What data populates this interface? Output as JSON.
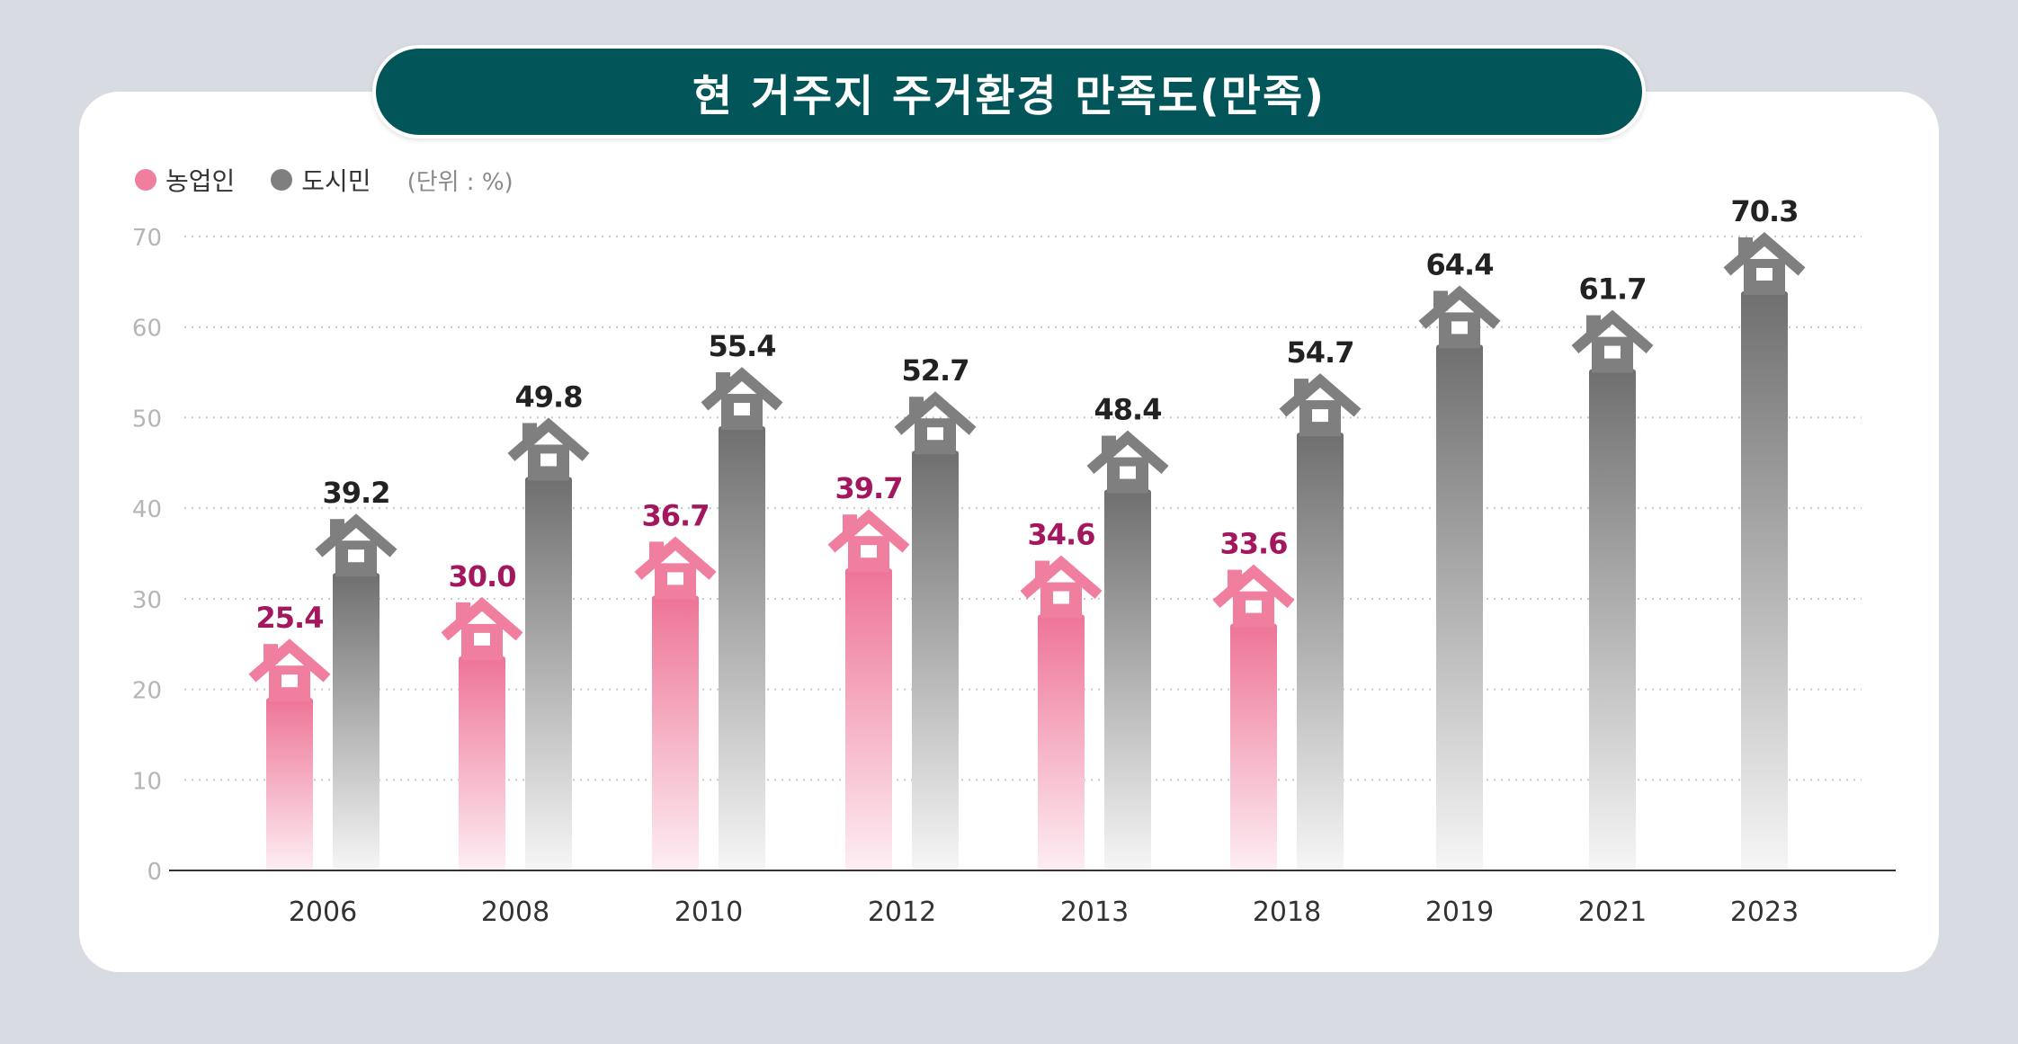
{
  "colors": {
    "farmer": "#f07f9f",
    "farmer_label": "#a3175f",
    "city": "#7f7f7f",
    "city_label": "#222222",
    "banner": "#025558"
  },
  "legend": {
    "farmer": "농업인",
    "city": "도시민",
    "unit": "(단위 : %)"
  },
  "chart_data": {
    "type": "bar",
    "title": "현 거주지 주거환경 만족도(만족)",
    "categories": [
      "2006",
      "2008",
      "2010",
      "2012",
      "2013",
      "2018",
      "2019",
      "2021",
      "2023"
    ],
    "series": [
      {
        "name": "농업인",
        "values": [
          25.4,
          30.0,
          36.7,
          39.7,
          34.6,
          33.6,
          null,
          null,
          null
        ]
      },
      {
        "name": "도시민",
        "values": [
          39.2,
          49.8,
          55.4,
          52.7,
          48.4,
          54.7,
          64.4,
          61.7,
          70.3
        ]
      }
    ],
    "value_labels": {
      "농업인": [
        "25.4",
        "30.0",
        "36.7",
        "39.7",
        "34.6",
        "33.6",
        null,
        null,
        null
      ],
      "도시민": [
        "39.2",
        "49.8",
        "55.4",
        "52.7",
        "48.4",
        "54.7",
        "64.4",
        "61.7",
        "70.3"
      ]
    },
    "yticks": [
      "0",
      "10",
      "20",
      "30",
      "40",
      "50",
      "60",
      "70"
    ],
    "ylim": [
      0,
      70
    ],
    "grid": true,
    "legend_position": "top-left",
    "xlabel": "",
    "ylabel": "",
    "marker": "house-icon"
  }
}
